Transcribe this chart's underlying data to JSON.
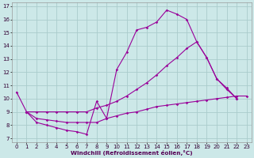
{
  "xlabel": "Windchill (Refroidissement éolien,°C)",
  "background_color": "#cce8e8",
  "grid_color": "#aacccc",
  "line_color": "#990099",
  "xlim": [
    -0.5,
    23.5
  ],
  "ylim": [
    6.7,
    17.3
  ],
  "yticks": [
    7,
    8,
    9,
    10,
    11,
    12,
    13,
    14,
    15,
    16,
    17
  ],
  "xticks": [
    0,
    1,
    2,
    3,
    4,
    5,
    6,
    7,
    8,
    9,
    10,
    11,
    12,
    13,
    14,
    15,
    16,
    17,
    18,
    19,
    20,
    21,
    22,
    23
  ],
  "line1_x": [
    0,
    1,
    2,
    3,
    4,
    5,
    6,
    7,
    8,
    9,
    10,
    11,
    12,
    13,
    14,
    15,
    16,
    17,
    18,
    19,
    20,
    21,
    22
  ],
  "line1_y": [
    10.5,
    9.0,
    8.2,
    8.0,
    7.8,
    7.6,
    7.5,
    7.3,
    9.8,
    8.5,
    12.2,
    13.5,
    15.2,
    15.4,
    15.8,
    16.7,
    16.4,
    16.0,
    14.3,
    13.1,
    11.5,
    10.8,
    10.0
  ],
  "line2_x": [
    1,
    2,
    3,
    4,
    5,
    6,
    7,
    8,
    9,
    10,
    11,
    12,
    13,
    14,
    15,
    16,
    17,
    18,
    19,
    20,
    21,
    22,
    23
  ],
  "line2_y": [
    9.0,
    9.0,
    9.0,
    9.0,
    9.0,
    9.0,
    9.0,
    9.3,
    9.5,
    9.8,
    10.2,
    10.7,
    11.2,
    11.8,
    12.5,
    13.1,
    13.8,
    14.3,
    13.1,
    11.5,
    10.7,
    10.0,
    null
  ],
  "line3_x": [
    1,
    2,
    3,
    4,
    5,
    6,
    7,
    8,
    9,
    10,
    11,
    12,
    13,
    14,
    15,
    16,
    17,
    18,
    19,
    20,
    21,
    22,
    23
  ],
  "line3_y": [
    9.0,
    8.5,
    8.4,
    8.3,
    8.2,
    8.2,
    8.2,
    8.2,
    8.5,
    8.7,
    8.9,
    9.0,
    9.2,
    9.4,
    9.5,
    9.6,
    9.7,
    9.8,
    9.9,
    10.0,
    10.1,
    10.2,
    10.2
  ]
}
